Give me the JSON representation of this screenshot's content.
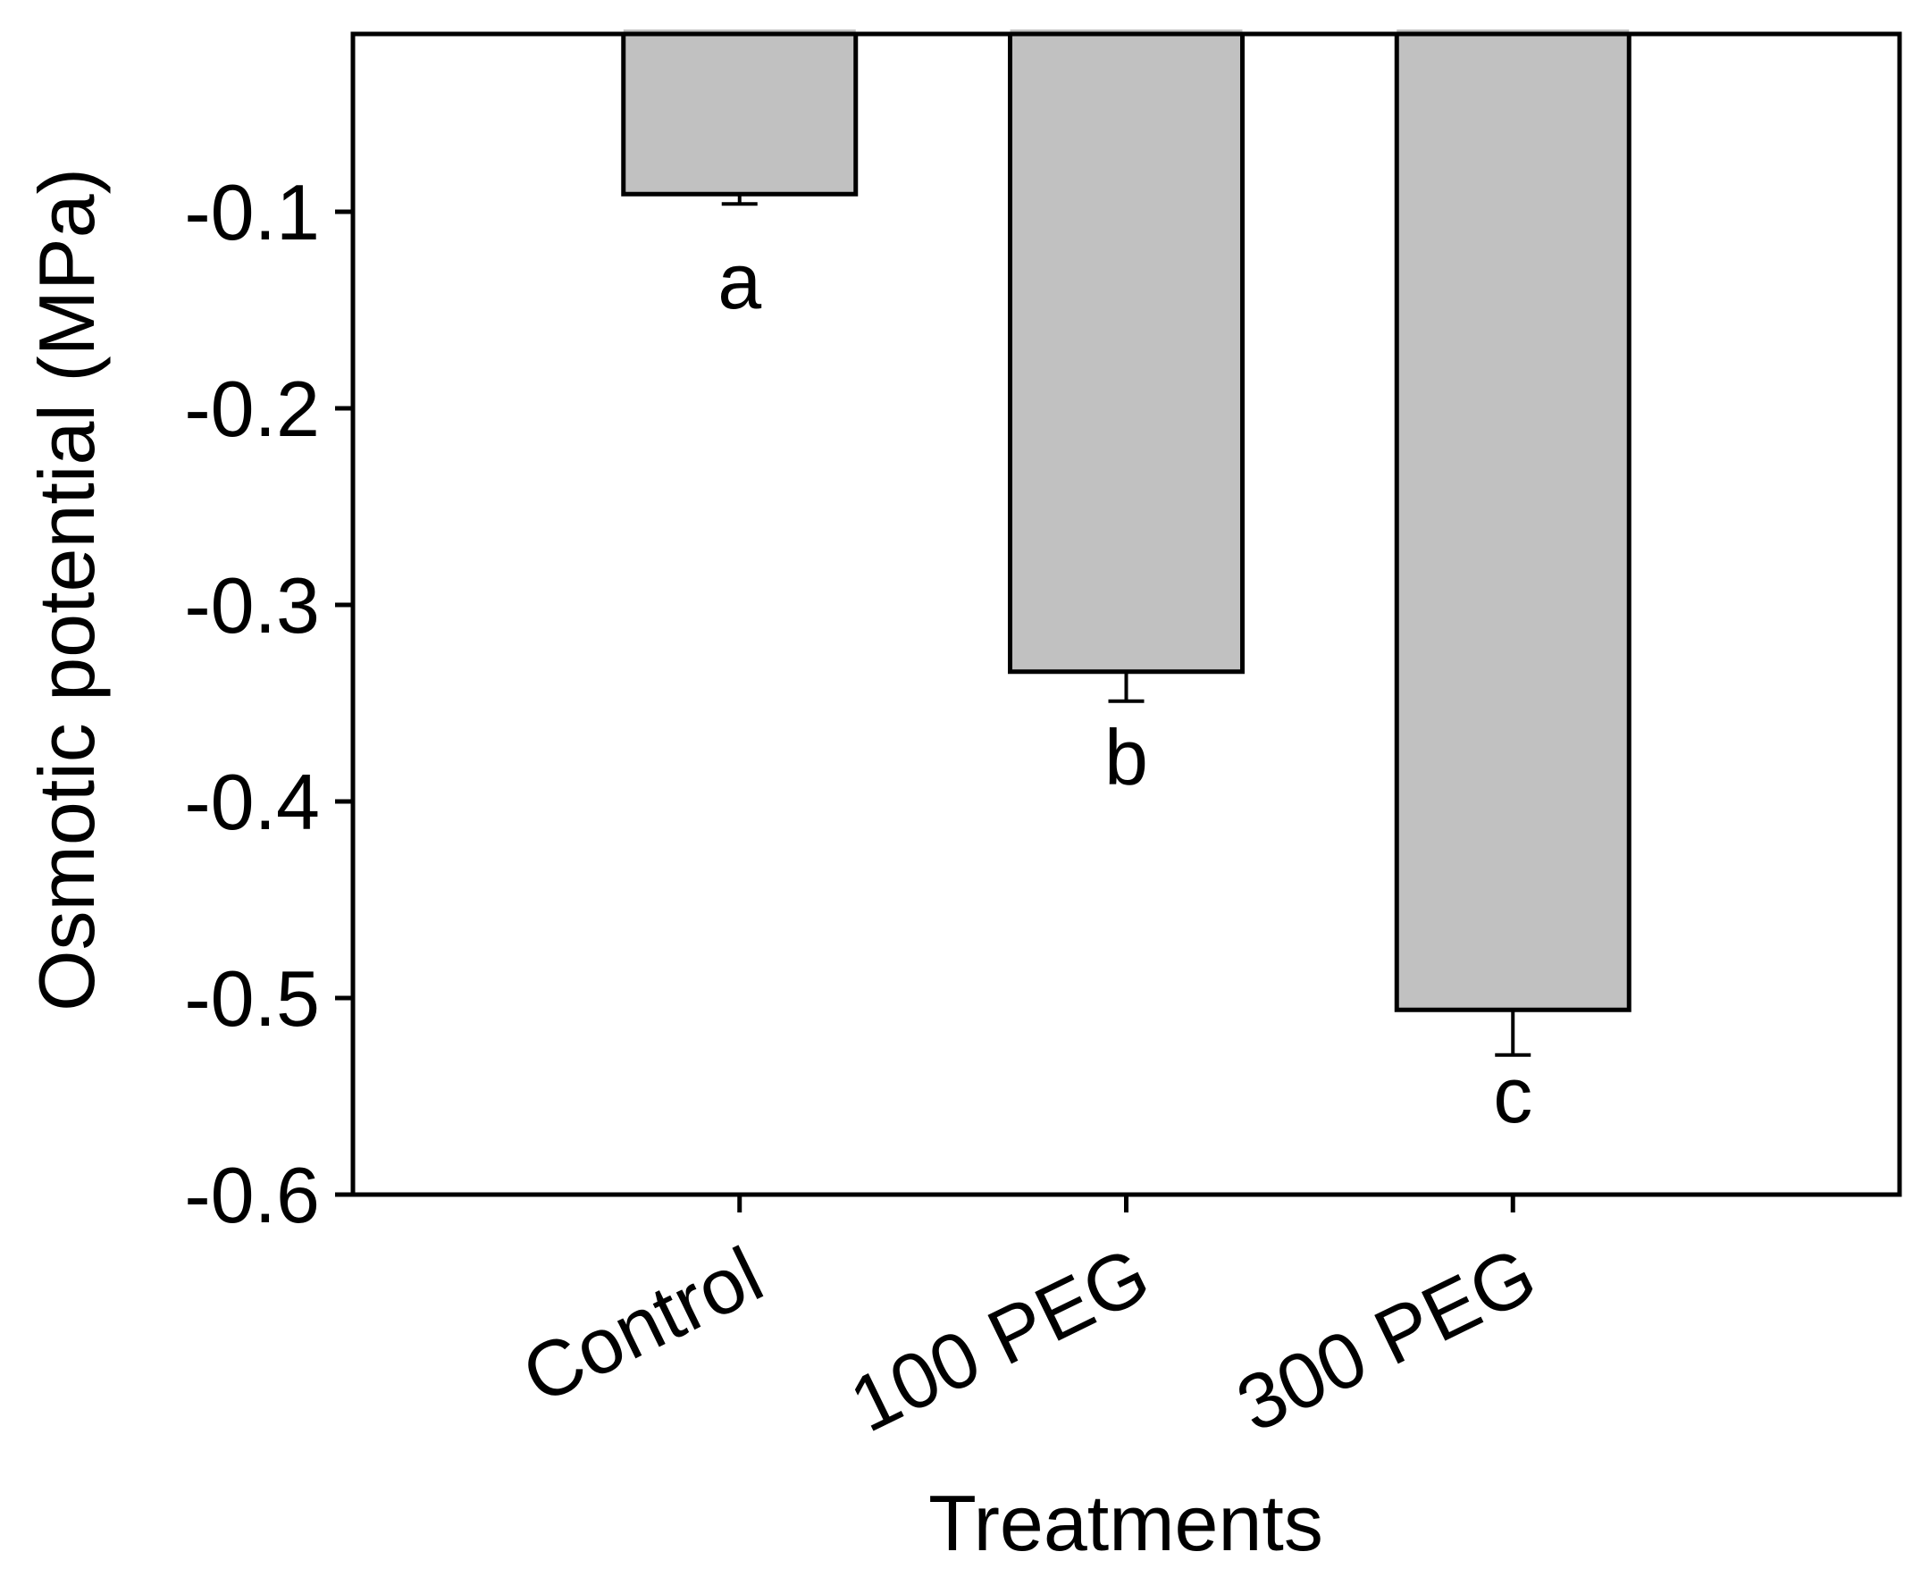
{
  "chart_data": {
    "type": "bar",
    "title": "",
    "xlabel": "Treatments",
    "ylabel": "Osmotic potential (MPa)",
    "categories": [
      "Control",
      "100 PEG",
      "300 PEG"
    ],
    "values": [
      -0.091,
      -0.334,
      -0.506
    ],
    "errors": [
      0.005,
      0.015,
      0.023
    ],
    "error_direction": "down",
    "sig_letters": [
      "a",
      "b",
      "c"
    ],
    "ylim": [
      -0.6,
      0
    ],
    "yticks": [
      -0.1,
      -0.2,
      -0.3,
      -0.4,
      -0.5,
      -0.6
    ],
    "ytick_labels": [
      "-0.1",
      "-0.2",
      "-0.3",
      "-0.4",
      "-0.5",
      "-0.6"
    ],
    "grid": false,
    "legend": "none",
    "bar_fill": "#c1c1c1",
    "bar_stroke": "#000000",
    "axis_color": "#000000",
    "background": "#ffffff"
  }
}
